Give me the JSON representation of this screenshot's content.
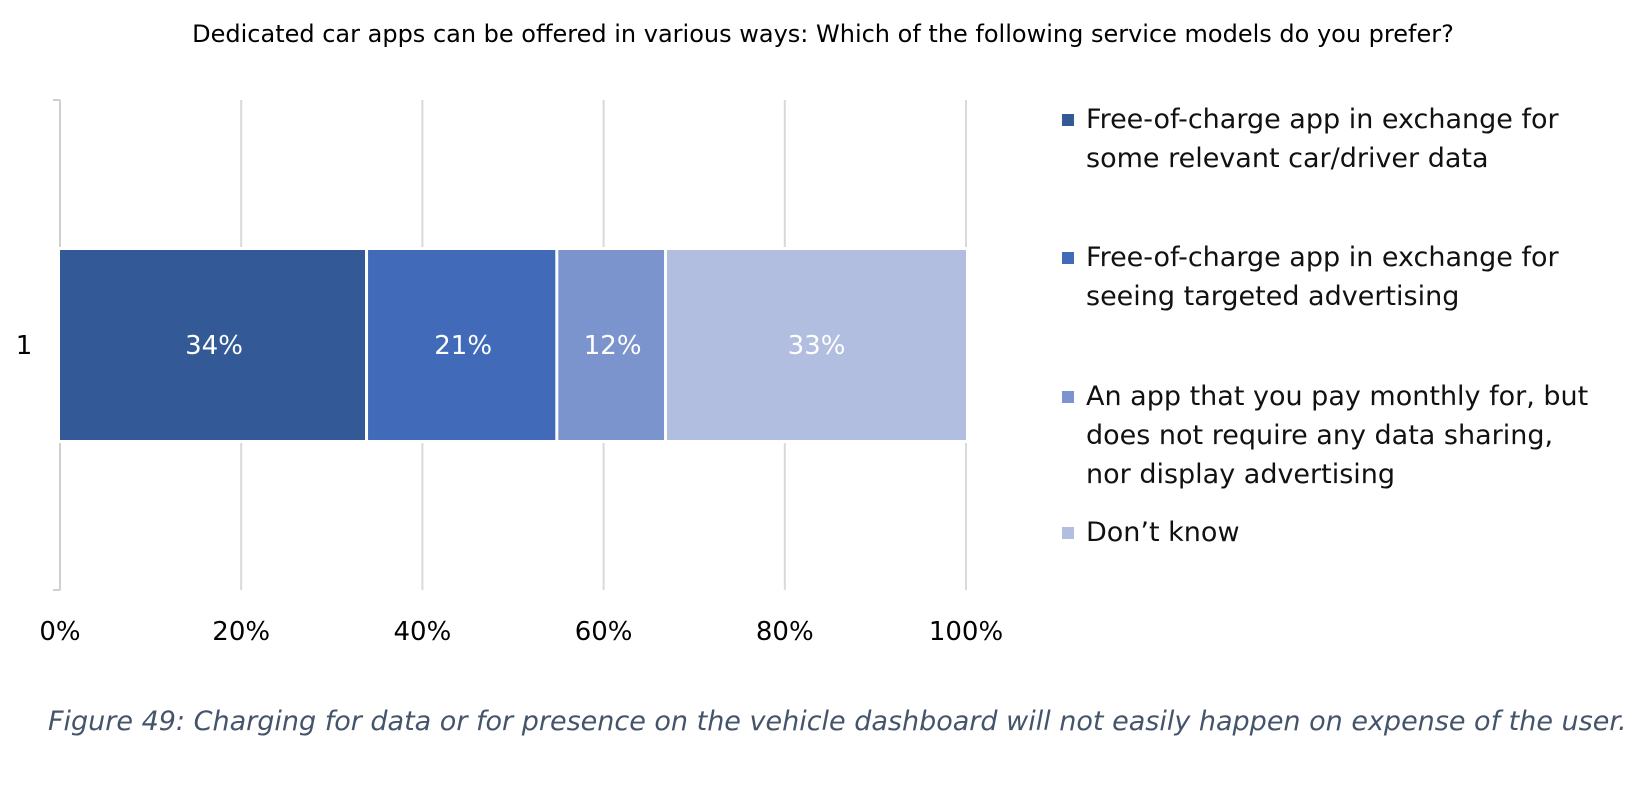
{
  "chart_data": {
    "type": "bar",
    "orientation": "horizontal",
    "stacked": true,
    "title": "Dedicated car apps can be offered in various ways: Which of the following service models do you prefer?",
    "categories": [
      "1"
    ],
    "series": [
      {
        "name": "Free-of-charge app in exchange for some relevant car/driver data",
        "values": [
          34
        ],
        "label": "34%",
        "color": "#335a97"
      },
      {
        "name": "Free-of-charge app in exchange for seeing targeted advertising",
        "values": [
          21
        ],
        "label": "21%",
        "color": "#416bb8"
      },
      {
        "name": "An app that you pay monthly for, but does not require any data sharing, nor display advertising",
        "values": [
          12
        ],
        "label": "12%",
        "color": "#7b94cd"
      },
      {
        "name": "Don’t know",
        "values": [
          33
        ],
        "label": "33%",
        "color": "#b2bee0"
      }
    ],
    "xlim": [
      0,
      100
    ],
    "xticks": [
      "0%",
      "20%",
      "40%",
      "60%",
      "80%",
      "100%"
    ],
    "grid": true,
    "legend_position": "right"
  },
  "caption": "Figure 49: Charging for data or for presence on the vehicle dashboard will not easily happen on expense of the user."
}
